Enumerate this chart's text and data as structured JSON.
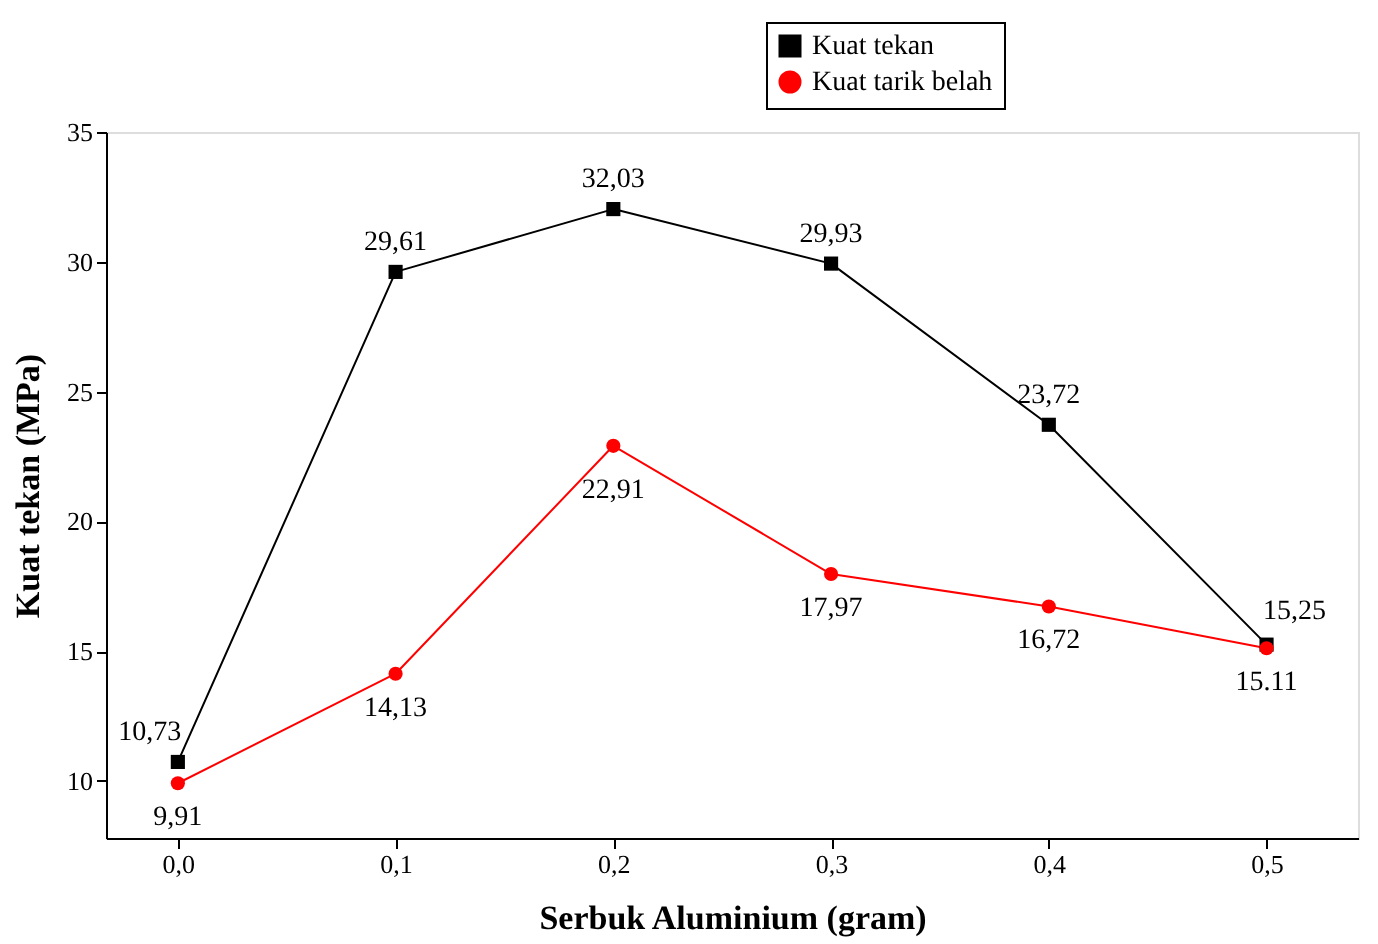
{
  "chart_data": {
    "type": "line",
    "xlabel": "Serbuk Aluminium (gram)",
    "ylabel": "Kuat tekan (MPa)",
    "x": [
      0.0,
      0.1,
      0.2,
      0.3,
      0.4,
      0.5
    ],
    "series": [
      {
        "name": "Kuat tekan",
        "color": "#000000",
        "marker": "square",
        "values": [
          10.73,
          29.61,
          32.03,
          29.93,
          23.72,
          15.25
        ],
        "value_labels": [
          "10,73",
          "29,61",
          "32,03",
          "29,93",
          "23,72",
          "15,25"
        ]
      },
      {
        "name": "Kuat tarik belah",
        "color": "#ff0000",
        "marker": "circle",
        "values": [
          9.91,
          14.13,
          22.91,
          17.97,
          16.72,
          15.11
        ],
        "value_labels": [
          "9,91",
          "14,13",
          "22,91",
          "17,97",
          "16,72",
          "15.11"
        ]
      }
    ],
    "xlim": [
      -0.033,
      0.542
    ],
    "xticks": [
      {
        "value": 0.0,
        "label": "0,0"
      },
      {
        "value": 0.1,
        "label": "0,1"
      },
      {
        "value": 0.2,
        "label": "0,2"
      },
      {
        "value": 0.3,
        "label": "0,3"
      },
      {
        "value": 0.4,
        "label": "0,4"
      },
      {
        "value": 0.5,
        "label": "0,5"
      }
    ],
    "ylim": [
      7.8,
      35
    ],
    "yticks": [
      10,
      15,
      20,
      25,
      30,
      35
    ],
    "grid": false,
    "legend": "top right",
    "line_style": "solid"
  }
}
